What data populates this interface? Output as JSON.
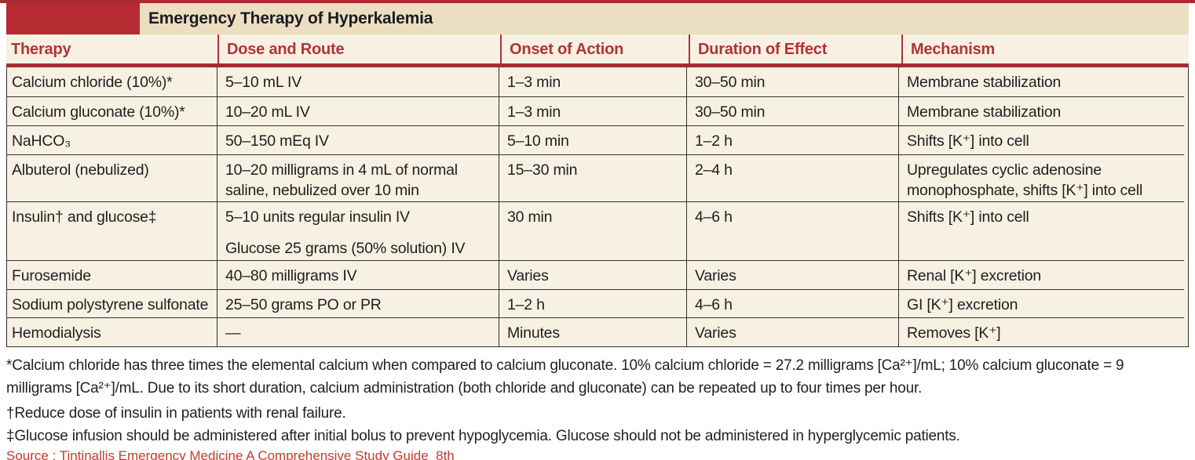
{
  "colors": {
    "accent_red_block": "#b52b31",
    "top_strip_red": "#a92c33",
    "header_rule_red": "#a62b33",
    "header_text_red": "#b23239",
    "title_band_bg": "#ecdfc1",
    "row_bg": "#f6f1e2",
    "body_text": "#201e21",
    "source_red": "#c23b2e"
  },
  "header": {
    "title": "Emergency Therapy of Hyperkalemia"
  },
  "table": {
    "columns": [
      "Therapy",
      "Dose and Route",
      "Onset of Action",
      "Duration of Effect",
      "Mechanism"
    ],
    "rows": [
      {
        "therapy": "Calcium chloride (10%)*",
        "dose": "5–10 mL IV",
        "onset": "1–3 min",
        "duration": "30–50 min",
        "mechanism": "Membrane stabilization"
      },
      {
        "therapy": "Calcium gluconate (10%)*",
        "dose": "10–20 mL IV",
        "onset": "1–3 min",
        "duration": "30–50 min",
        "mechanism": "Membrane stabilization"
      },
      {
        "therapy": "NaHCO₃",
        "dose": "50–150 mEq IV",
        "onset": "5–10 min",
        "duration": "1–2 h",
        "mechanism": "Shifts [K⁺] into cell"
      },
      {
        "therapy": "Albuterol (nebulized)",
        "dose": "10–20 milligrams in 4 mL of normal saline, nebulized over 10 min",
        "onset": "15–30 min",
        "duration": "2–4 h",
        "mechanism": "Upregulates cyclic adenosine monophosphate, shifts [K⁺] into cell"
      },
      {
        "therapy": "Insulin† and glucose‡",
        "dose": "5–10 units regular insulin IV",
        "dose2": "Glucose 25 grams (50% solution) IV",
        "onset": "30 min",
        "duration": "4–6 h",
        "mechanism": "Shifts [K⁺] into cell"
      },
      {
        "therapy": "Furosemide",
        "dose": "40–80 milligrams IV",
        "onset": "Varies",
        "duration": "Varies",
        "mechanism": "Renal [K⁺] excretion"
      },
      {
        "therapy": "Sodium polystyrene sulfonate",
        "dose": "25–50 grams PO or PR",
        "onset": "1–2 h",
        "duration": "4–6 h",
        "mechanism": "GI [K⁺] excretion"
      },
      {
        "therapy": "Hemodialysis",
        "dose": "—",
        "onset": "Minutes",
        "duration": "Varies",
        "mechanism": "Removes [K⁺]"
      }
    ]
  },
  "footnotes": {
    "note1": "*Calcium chloride has three times the elemental calcium when compared to calcium gluconate. 10% calcium chloride = 27.2 milligrams [Ca²⁺]/mL; 10% calcium gluconate = 9 milligrams [Ca²⁺]/mL. Due to its short duration, calcium administration (both chloride and gluconate) can be repeated up to four times per hour.",
    "note2": "†Reduce dose of insulin in patients with renal failure.",
    "note3": "‡Glucose infusion should be administered after initial bolus to prevent hypoglycemia. Glucose should not be administered in hyperglycemic patients."
  },
  "source": "Source : Tintinallis Emergency Medicine A Comprehensive Study Guide_8th"
}
